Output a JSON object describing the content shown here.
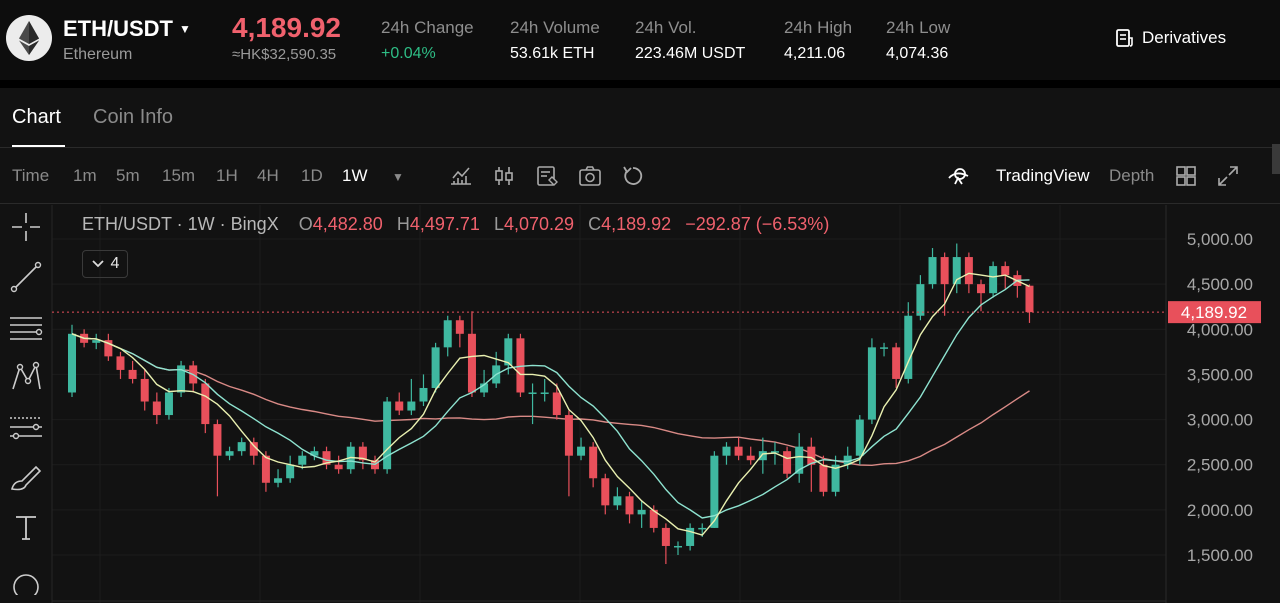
{
  "ticker": {
    "pair": "ETH/USDT",
    "coin_name": "Ethereum",
    "last_price": "4,189.92",
    "price_hkd": "≈HK$32,590.35",
    "stats": [
      {
        "label": "24h Change",
        "value": "+0.04%"
      },
      {
        "label": "24h Volume",
        "value": "53.61k ETH"
      },
      {
        "label": "24h Vol.",
        "value": "223.46M USDT"
      },
      {
        "label": "24h High",
        "value": "4,211.06"
      },
      {
        "label": "24h Low",
        "value": "4,074.36"
      }
    ],
    "derivatives_label": "Derivatives"
  },
  "tabs": [
    {
      "label": "Chart"
    },
    {
      "label": "Coin Info"
    }
  ],
  "toolbar": {
    "time_label": "Time",
    "intervals": [
      "1m",
      "5m",
      "15m",
      "1H",
      "4H",
      "1D",
      "1W"
    ],
    "active_interval": "1W",
    "icons": [
      "indicators-icon",
      "candle-type-icon",
      "template-icon",
      "snapshot-icon",
      "undo-icon"
    ],
    "tradingview_label": "TradingView",
    "depth_label": "Depth"
  },
  "drawing_tools": [
    "crosshair-icon",
    "trendline-icon",
    "horizontal-lines-icon",
    "pattern-icon",
    "fib-icon",
    "brush-icon",
    "text-icon",
    "more-icon"
  ],
  "legend": {
    "symbol": "ETH/USDT · 1W · BingX",
    "o_label": "O",
    "open": "4,482.80",
    "h_label": "H",
    "high": "4,497.71",
    "l_label": "L",
    "low": "4,070.29",
    "c_label": "C",
    "close": "4,189.92",
    "change": "−292.87 (−6.53%)",
    "indicator_count": "4"
  },
  "chart_data": {
    "type": "candlestick",
    "interval": "1W",
    "y_ticks": [
      "5,000.00",
      "4,500.00",
      "4,000.00",
      "3,500.00",
      "3,000.00",
      "2,500.00",
      "2,000.00",
      "1,500.00"
    ],
    "y_tick_values": [
      5000,
      4500,
      4000,
      3500,
      3000,
      2500,
      2000,
      1500
    ],
    "current_price": 4189.92,
    "current_price_label": "4,189.92",
    "colors": {
      "up": "#3fb8a0",
      "down": "#e8505b",
      "ma_fast": "#e9f0b0",
      "ma_mid": "#8ee3d0",
      "ma_slow": "#d98a86"
    },
    "candles": [
      [
        3300,
        3950,
        4050,
        3250
      ],
      [
        3950,
        3850,
        4000,
        3800
      ],
      [
        3850,
        3880,
        3950,
        3780
      ],
      [
        3880,
        3700,
        3950,
        3650
      ],
      [
        3700,
        3550,
        3750,
        3450
      ],
      [
        3550,
        3450,
        3650,
        3400
      ],
      [
        3450,
        3200,
        3550,
        3100
      ],
      [
        3200,
        3050,
        3300,
        2950
      ],
      [
        3050,
        3300,
        3350,
        3000
      ],
      [
        3300,
        3600,
        3650,
        3250
      ],
      [
        3600,
        3400,
        3650,
        3300
      ],
      [
        3400,
        2950,
        3450,
        2850
      ],
      [
        2950,
        2600,
        3000,
        2150
      ],
      [
        2600,
        2650,
        2700,
        2550
      ],
      [
        2650,
        2750,
        2800,
        2600
      ],
      [
        2750,
        2600,
        2800,
        2500
      ],
      [
        2600,
        2300,
        2650,
        2200
      ],
      [
        2300,
        2350,
        2450,
        2250
      ],
      [
        2350,
        2500,
        2600,
        2300
      ],
      [
        2500,
        2600,
        2650,
        2450
      ],
      [
        2600,
        2650,
        2700,
        2550
      ],
      [
        2650,
        2500,
        2700,
        2450
      ],
      [
        2500,
        2450,
        2600,
        2400
      ],
      [
        2450,
        2700,
        2750,
        2400
      ],
      [
        2700,
        2550,
        2750,
        2450
      ],
      [
        2550,
        2450,
        2600,
        2400
      ],
      [
        2450,
        3200,
        3250,
        2400
      ],
      [
        3200,
        3100,
        3300,
        3050
      ],
      [
        3100,
        3200,
        3450,
        3050
      ],
      [
        3200,
        3350,
        3500,
        3150
      ],
      [
        3350,
        3800,
        3850,
        3300
      ],
      [
        3800,
        4100,
        4150,
        3700
      ],
      [
        4100,
        3950,
        4150,
        3800
      ],
      [
        3950,
        3300,
        4200,
        3250
      ],
      [
        3300,
        3400,
        3550,
        3250
      ],
      [
        3400,
        3600,
        3750,
        3350
      ],
      [
        3600,
        3900,
        3950,
        3500
      ],
      [
        3900,
        3300,
        3950,
        3250
      ],
      [
        3300,
        3300,
        3400,
        2950
      ],
      [
        3300,
        3300,
        3450,
        3200
      ],
      [
        3300,
        3050,
        3400,
        3000
      ],
      [
        3050,
        2600,
        3100,
        2150
      ],
      [
        2600,
        2700,
        2800,
        2550
      ],
      [
        2700,
        2350,
        2750,
        2250
      ],
      [
        2350,
        2050,
        2400,
        1950
      ],
      [
        2050,
        2150,
        2250,
        2000
      ],
      [
        2150,
        1950,
        2200,
        1850
      ],
      [
        1950,
        2000,
        2100,
        1800
      ],
      [
        2000,
        1800,
        2050,
        1750
      ],
      [
        1800,
        1600,
        1850,
        1400
      ],
      [
        1600,
        1600,
        1650,
        1500
      ],
      [
        1600,
        1800,
        1850,
        1550
      ],
      [
        1800,
        1800,
        1850,
        1700
      ],
      [
        1800,
        2600,
        2650,
        1800
      ],
      [
        2600,
        2700,
        2750,
        2500
      ],
      [
        2700,
        2600,
        2800,
        2550
      ],
      [
        2600,
        2550,
        2700,
        2500
      ],
      [
        2550,
        2650,
        2800,
        2400
      ],
      [
        2650,
        2650,
        2750,
        2500
      ],
      [
        2650,
        2400,
        2700,
        2350
      ],
      [
        2400,
        2700,
        2850,
        2300
      ],
      [
        2700,
        2500,
        2800,
        2200
      ],
      [
        2500,
        2200,
        2600,
        2150
      ],
      [
        2200,
        2500,
        2600,
        2150
      ],
      [
        2500,
        2600,
        2700,
        2450
      ],
      [
        2600,
        3000,
        3050,
        2500
      ],
      [
        3000,
        3800,
        3900,
        2950
      ],
      [
        3800,
        3800,
        3850,
        3700
      ],
      [
        3800,
        3450,
        3850,
        3350
      ],
      [
        3450,
        4150,
        4300,
        3400
      ],
      [
        4150,
        4500,
        4600,
        4100
      ],
      [
        4500,
        4800,
        4900,
        4450
      ],
      [
        4800,
        4500,
        4850,
        4150
      ],
      [
        4500,
        4800,
        4950,
        4400
      ],
      [
        4800,
        4500,
        4850,
        4400
      ],
      [
        4500,
        4400,
        4550,
        4200
      ],
      [
        4400,
        4700,
        4750,
        4350
      ],
      [
        4700,
        4600,
        4750,
        4450
      ],
      [
        4600,
        4480,
        4650,
        4350
      ],
      [
        4482.8,
        4189.92,
        4497.71,
        4070.29
      ]
    ]
  }
}
